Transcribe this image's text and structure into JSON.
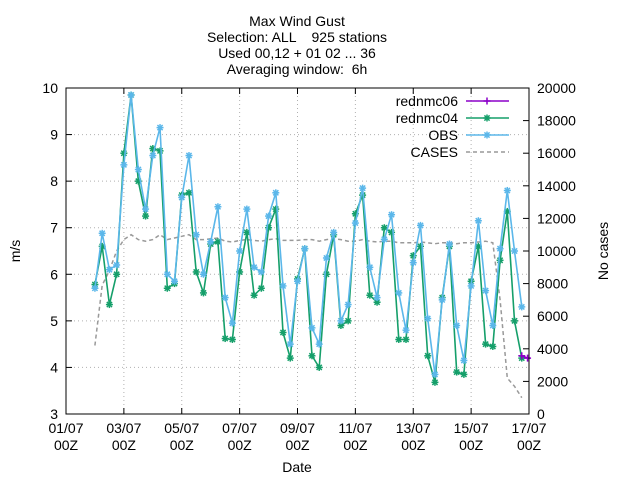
{
  "chart_data": {
    "type": "line",
    "title_lines": [
      "Max Wind Gust",
      "Selection: ALL    925 stations",
      "Used 00,12 + 01 02 ... 36",
      "Averaging window:  6h"
    ],
    "xlabel": "Date",
    "ylabel": "m/s",
    "y2label": "No cases",
    "xlim": [
      0,
      16
    ],
    "ylim": [
      3,
      10
    ],
    "y2lim": [
      0,
      20000
    ],
    "x_ticks": [
      {
        "pos": 0,
        "l1": "01/07",
        "l2": "00Z"
      },
      {
        "pos": 2,
        "l1": "03/07",
        "l2": "00Z"
      },
      {
        "pos": 4,
        "l1": "05/07",
        "l2": "00Z"
      },
      {
        "pos": 6,
        "l1": "07/07",
        "l2": "00Z"
      },
      {
        "pos": 8,
        "l1": "09/07",
        "l2": "00Z"
      },
      {
        "pos": 10,
        "l1": "11/07",
        "l2": "00Z"
      },
      {
        "pos": 12,
        "l1": "13/07",
        "l2": "00Z"
      },
      {
        "pos": 14,
        "l1": "15/07",
        "l2": "00Z"
      },
      {
        "pos": 16,
        "l1": "17/07",
        "l2": "00Z"
      }
    ],
    "y_ticks": [
      "3",
      "4",
      "5",
      "6",
      "7",
      "8",
      "9",
      "10"
    ],
    "y2_ticks": [
      "0",
      "2000",
      "4000",
      "6000",
      "8000",
      "10000",
      "12000",
      "14000",
      "16000",
      "18000",
      "20000"
    ],
    "grid": true,
    "legend_position": "top-right",
    "series": [
      {
        "name": "rednmc06",
        "color": "#8b00c8",
        "marker": "plus",
        "points": [
          [
            15.75,
            4.25
          ],
          [
            15.95,
            4.2
          ]
        ]
      },
      {
        "name": "rednmc04",
        "color": "#159f6a",
        "marker": "star",
        "points": [
          [
            1.0,
            5.78
          ],
          [
            1.25,
            6.6
          ],
          [
            1.5,
            5.35
          ],
          [
            1.75,
            6.0
          ],
          [
            2.0,
            8.6
          ],
          [
            2.25,
            9.85
          ],
          [
            2.5,
            8.0
          ],
          [
            2.75,
            7.25
          ],
          [
            3.0,
            8.7
          ],
          [
            3.25,
            8.65
          ],
          [
            3.5,
            5.7
          ],
          [
            3.75,
            5.8
          ],
          [
            4.0,
            7.7
          ],
          [
            4.25,
            7.75
          ],
          [
            4.5,
            6.05
          ],
          [
            4.75,
            5.6
          ],
          [
            5.0,
            6.65
          ],
          [
            5.25,
            6.7
          ],
          [
            5.5,
            4.62
          ],
          [
            5.75,
            4.6
          ],
          [
            6.0,
            6.05
          ],
          [
            6.25,
            6.9
          ],
          [
            6.5,
            5.55
          ],
          [
            6.75,
            5.7
          ],
          [
            7.0,
            7.0
          ],
          [
            7.25,
            7.4
          ],
          [
            7.5,
            4.75
          ],
          [
            7.75,
            4.2
          ],
          [
            8.0,
            5.9
          ],
          [
            8.25,
            6.55
          ],
          [
            8.5,
            4.25
          ],
          [
            8.75,
            4.0
          ],
          [
            9.0,
            6.0
          ],
          [
            9.25,
            6.85
          ],
          [
            9.5,
            4.9
          ],
          [
            9.75,
            5.0
          ],
          [
            10.0,
            7.3
          ],
          [
            10.25,
            7.7
          ],
          [
            10.5,
            5.55
          ],
          [
            10.75,
            5.4
          ],
          [
            11.0,
            7.0
          ],
          [
            11.25,
            6.9
          ],
          [
            11.5,
            4.6
          ],
          [
            11.75,
            4.6
          ],
          [
            12.0,
            6.4
          ],
          [
            12.25,
            6.6
          ],
          [
            12.5,
            4.25
          ],
          [
            12.75,
            3.68
          ],
          [
            13.0,
            5.5
          ],
          [
            13.25,
            6.6
          ],
          [
            13.5,
            3.9
          ],
          [
            13.75,
            3.85
          ],
          [
            14.0,
            5.85
          ],
          [
            14.25,
            6.6
          ],
          [
            14.5,
            4.5
          ],
          [
            14.75,
            4.45
          ],
          [
            15.0,
            6.3
          ],
          [
            15.25,
            7.35
          ],
          [
            15.5,
            5.0
          ],
          [
            15.75,
            4.2
          ]
        ]
      },
      {
        "name": "OBS",
        "color": "#5bb7ea",
        "marker": "star",
        "points": [
          [
            1.0,
            5.7
          ],
          [
            1.25,
            6.88
          ],
          [
            1.5,
            6.1
          ],
          [
            1.75,
            6.2
          ],
          [
            2.0,
            8.35
          ],
          [
            2.25,
            9.85
          ],
          [
            2.5,
            8.25
          ],
          [
            2.75,
            7.4
          ],
          [
            3.0,
            8.55
          ],
          [
            3.25,
            9.15
          ],
          [
            3.5,
            6.0
          ],
          [
            3.75,
            5.85
          ],
          [
            4.0,
            7.65
          ],
          [
            4.25,
            8.55
          ],
          [
            4.5,
            6.85
          ],
          [
            4.75,
            6.0
          ],
          [
            5.0,
            6.7
          ],
          [
            5.25,
            7.45
          ],
          [
            5.5,
            5.5
          ],
          [
            5.75,
            4.95
          ],
          [
            6.0,
            6.5
          ],
          [
            6.25,
            7.4
          ],
          [
            6.5,
            6.15
          ],
          [
            6.75,
            6.05
          ],
          [
            7.0,
            7.25
          ],
          [
            7.25,
            7.75
          ],
          [
            7.5,
            5.75
          ],
          [
            7.75,
            4.5
          ],
          [
            8.0,
            5.85
          ],
          [
            8.25,
            6.55
          ],
          [
            8.5,
            4.85
          ],
          [
            8.75,
            4.5
          ],
          [
            9.0,
            6.35
          ],
          [
            9.25,
            6.9
          ],
          [
            9.5,
            5.0
          ],
          [
            9.75,
            5.35
          ],
          [
            10.0,
            7.1
          ],
          [
            10.25,
            7.85
          ],
          [
            10.5,
            6.15
          ],
          [
            10.75,
            5.5
          ],
          [
            11.0,
            6.75
          ],
          [
            11.25,
            7.28
          ],
          [
            11.5,
            5.6
          ],
          [
            11.75,
            4.8
          ],
          [
            12.0,
            6.25
          ],
          [
            12.25,
            7.05
          ],
          [
            12.5,
            5.05
          ],
          [
            12.75,
            3.85
          ],
          [
            13.0,
            5.45
          ],
          [
            13.25,
            6.65
          ],
          [
            13.5,
            4.9
          ],
          [
            13.75,
            4.15
          ],
          [
            14.0,
            5.75
          ],
          [
            14.25,
            7.15
          ],
          [
            14.5,
            5.65
          ],
          [
            14.75,
            4.9
          ],
          [
            15.0,
            6.55
          ],
          [
            15.25,
            7.8
          ],
          [
            15.5,
            6.5
          ],
          [
            15.75,
            5.3
          ]
        ]
      },
      {
        "name": "CASES",
        "color": "#999999",
        "marker": "none",
        "dashed": true,
        "axis": "y2",
        "points": [
          [
            1.0,
            4200
          ],
          [
            1.25,
            7900
          ],
          [
            1.5,
            8800
          ],
          [
            1.75,
            10000
          ],
          [
            2.0,
            10700
          ],
          [
            2.25,
            11000
          ],
          [
            2.5,
            10700
          ],
          [
            2.75,
            10600
          ],
          [
            3.0,
            10700
          ],
          [
            3.25,
            11000
          ],
          [
            3.5,
            10700
          ],
          [
            3.75,
            10800
          ],
          [
            4.0,
            10900
          ],
          [
            4.25,
            11000
          ],
          [
            4.5,
            10700
          ],
          [
            4.75,
            10700
          ],
          [
            5.0,
            10750
          ],
          [
            5.25,
            10800
          ],
          [
            5.5,
            10600
          ],
          [
            5.75,
            10550
          ],
          [
            6.0,
            10650
          ],
          [
            6.25,
            10700
          ],
          [
            6.5,
            10650
          ],
          [
            6.75,
            10600
          ],
          [
            7.0,
            10700
          ],
          [
            7.25,
            10750
          ],
          [
            7.5,
            10650
          ],
          [
            7.75,
            10650
          ],
          [
            8.0,
            10650
          ],
          [
            8.25,
            10700
          ],
          [
            8.5,
            10700
          ],
          [
            8.75,
            10600
          ],
          [
            9.0,
            10700
          ],
          [
            9.25,
            10750
          ],
          [
            9.5,
            10700
          ],
          [
            9.75,
            10600
          ],
          [
            10.0,
            10600
          ],
          [
            10.25,
            10700
          ],
          [
            10.5,
            10600
          ],
          [
            10.75,
            10550
          ],
          [
            11.0,
            10600
          ],
          [
            11.25,
            10600
          ],
          [
            11.5,
            10500
          ],
          [
            11.75,
            10500
          ],
          [
            12.0,
            10500
          ],
          [
            12.25,
            10550
          ],
          [
            12.5,
            10500
          ],
          [
            12.75,
            10450
          ],
          [
            13.0,
            10500
          ],
          [
            13.25,
            10500
          ],
          [
            13.5,
            10450
          ],
          [
            13.75,
            10500
          ],
          [
            14.0,
            10500
          ],
          [
            14.25,
            10550
          ],
          [
            14.5,
            10600
          ],
          [
            14.75,
            10500
          ],
          [
            15.0,
            7000
          ],
          [
            15.25,
            2200
          ],
          [
            15.5,
            1700
          ],
          [
            15.75,
            1000
          ]
        ]
      }
    ]
  }
}
